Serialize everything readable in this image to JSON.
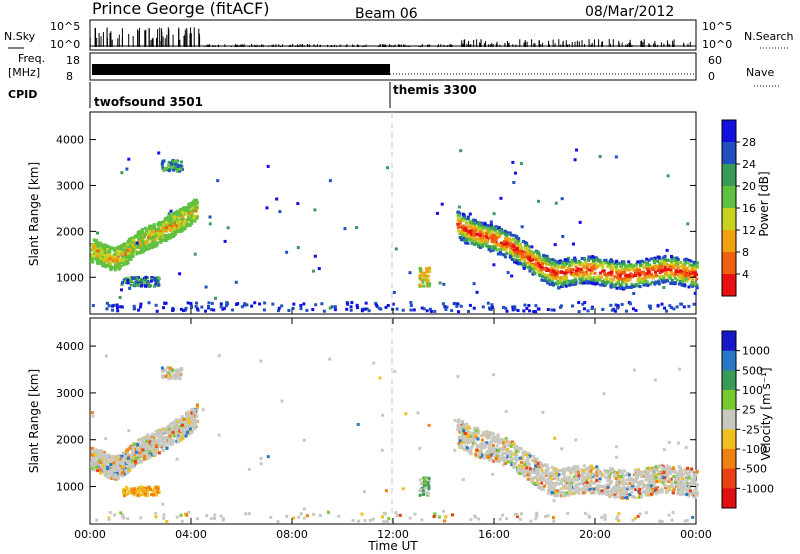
{
  "header": {
    "station": "Prince George (fitACF)",
    "beam": "Beam 06",
    "date": "08/Mar/2012"
  },
  "top_panels": {
    "nsky_label": "N.Sky",
    "nsky_ticks": [
      "10^5",
      "10^0"
    ],
    "nsearch_label": "N.Search",
    "nsearch_ticks": [
      "10^5",
      "10^0"
    ],
    "freq_label_1": "Freq.",
    "freq_label_2": "[MHz]",
    "freq_ticks": [
      "18",
      "8"
    ],
    "nave_label": "Nave",
    "nave_ticks": [
      "60",
      "0"
    ],
    "cpid_label": "CPID",
    "cpid_modes": [
      {
        "name": "twofsound 3501",
        "start_hour": 0,
        "end_hour": 12
      },
      {
        "name": "themis 3300",
        "start_hour": 12,
        "end_hour": 24
      }
    ]
  },
  "chart_data": [
    {
      "type": "heatmap",
      "title": "",
      "ylabel": "Slant Range [km]",
      "xlabel": "",
      "yticks": [
        "1000",
        "2000",
        "3000",
        "4000"
      ],
      "ylim": [
        200,
        4600
      ],
      "xlim": [
        0,
        24
      ],
      "colorbar_label": "Power [dB]",
      "colorbar_ticks": [
        "4",
        "8",
        "12",
        "16",
        "20",
        "24",
        "28"
      ],
      "colorbar_colors": [
        "#1010e0",
        "#2050c0",
        "#3a9a5a",
        "#60c040",
        "#c8d020",
        "#f0a010",
        "#f06010",
        "#e81010"
      ]
    },
    {
      "type": "heatmap",
      "title": "",
      "ylabel": "Slant Range [km]",
      "xlabel": "Time UT",
      "yticks": [
        "1000",
        "2000",
        "3000",
        "4000"
      ],
      "ylim": [
        200,
        4600
      ],
      "xlim": [
        0,
        24
      ],
      "xticks": [
        "00:00",
        "04:00",
        "08:00",
        "12:00",
        "16:00",
        "20:00",
        "00:00"
      ],
      "colorbar_label": "Velocity [m s⁻¹]",
      "colorbar_ticks": [
        "1000",
        "500",
        "100",
        "25",
        "-25",
        "-100",
        "-500",
        "-1000"
      ],
      "colorbar_colors": [
        "#1818c8",
        "#2878c8",
        "#3a9a5a",
        "#78c830",
        "#c8c8c0",
        "#f0c020",
        "#f08010",
        "#e84010",
        "#e01010"
      ]
    }
  ]
}
